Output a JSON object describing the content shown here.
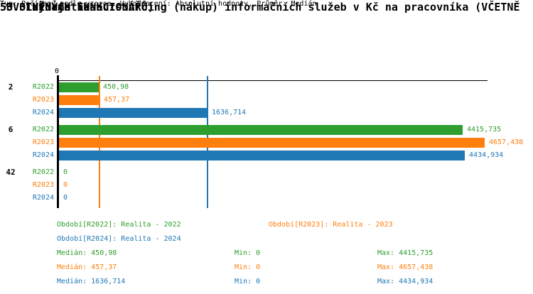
{
  "header": {
    "title_line1": "53. Informatika",
    "title_line2": "53.3 Výdaje na outsourcing (nákup) informačních služeb v Kč na pracovníka (VČETNĚ",
    "title_line3": " UVOLNĚNÝCH FUNKCIONÁŘŮ)",
    "meta_line": "Typ: Počítaný podle vzorce, Vyhodnocení: Absolutní hodnoty, Průměr: Medián"
  },
  "colors": {
    "R2022": "#2E9E2E",
    "R2023": "#FF7F0E",
    "R2024": "#1F77B4",
    "axis": "#000000"
  },
  "chart_data": {
    "type": "bar",
    "orientation": "horizontal",
    "title": "53.3 Výdaje na outsourcing (nákup) informačních služeb v Kč na pracovníka (VČETNĚ UVOLNĚNÝCH FUNKCIONÁŘŮ)",
    "x_axis": {
      "tick_labels": [
        "0"
      ],
      "xlim": [
        0,
        4686
      ],
      "grid": false
    },
    "series_names": [
      "R2022",
      "R2023",
      "R2024"
    ],
    "groups": [
      {
        "label": "2",
        "bars": [
          {
            "series": "R2022",
            "value": 450.98,
            "value_label": "450,98"
          },
          {
            "series": "R2023",
            "value": 457.37,
            "value_label": "457,37"
          },
          {
            "series": "R2024",
            "value": 1636.714,
            "value_label": "1636,714"
          }
        ]
      },
      {
        "label": "6",
        "bars": [
          {
            "series": "R2022",
            "value": 4415.735,
            "value_label": "4415,735"
          },
          {
            "series": "R2023",
            "value": 4657.438,
            "value_label": "4657,438"
          },
          {
            "series": "R2024",
            "value": 4434.934,
            "value_label": "4434,934"
          }
        ]
      },
      {
        "label": "42",
        "bars": [
          {
            "series": "R2022",
            "value": 0,
            "value_label": "0"
          },
          {
            "series": "R2023",
            "value": 0,
            "value_label": "0"
          },
          {
            "series": "R2024",
            "value": 0,
            "value_label": "0"
          }
        ]
      }
    ],
    "median_lines": [
      {
        "series": "R2023",
        "value": 457.37
      },
      {
        "series": "R2024",
        "value": 1636.714
      }
    ]
  },
  "legend": {
    "items": [
      {
        "series": "R2022",
        "label": "Období[R2022]: Realita - 2022"
      },
      {
        "series": "R2023",
        "label": "Období[R2023]: Realita - 2023"
      },
      {
        "series": "R2024",
        "label": "Období[R2024]: Realita - 2024"
      }
    ]
  },
  "stats": {
    "rows": [
      {
        "series": "R2022",
        "median": "Medián: 450,98",
        "min": "Min: 0",
        "max": "Max: 4415,735"
      },
      {
        "series": "R2023",
        "median": "Medián: 457,37",
        "min": "Min: 0",
        "max": "Max: 4657,438"
      },
      {
        "series": "R2024",
        "median": "Medián: 1636,714",
        "min": "Min: 0",
        "max": "Max: 4434,934"
      }
    ]
  }
}
